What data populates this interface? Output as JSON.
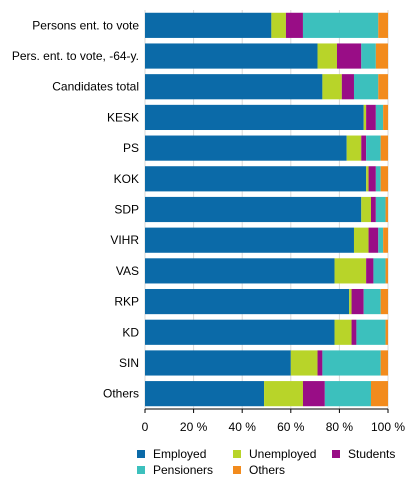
{
  "chart_data": {
    "type": "bar",
    "orientation": "horizontal",
    "stacked": true,
    "percent": true,
    "categories": [
      "Persons ent. to vote",
      "Pers. ent. to vote, -64-y.",
      "Candidates total",
      "KESK",
      "PS",
      "KOK",
      "SDP",
      "VIHR",
      "VAS",
      "RKP",
      "KD",
      "SIN",
      "Others"
    ],
    "series": [
      {
        "name": "Employed",
        "color": "#0b6aa8",
        "values": [
          52,
          71,
          73,
          90,
          83,
          91,
          89,
          86,
          78,
          84,
          78,
          60,
          49
        ]
      },
      {
        "name": "Unemployed",
        "color": "#b8d429",
        "values": [
          6,
          8,
          8,
          1,
          6,
          1,
          4,
          6,
          13,
          1,
          7,
          11,
          16
        ]
      },
      {
        "name": "Students",
        "color": "#990d86",
        "values": [
          7,
          10,
          5,
          4,
          2,
          3,
          2,
          4,
          3,
          5,
          2,
          2,
          9
        ]
      },
      {
        "name": "Pensioners",
        "color": "#3cc0bd",
        "values": [
          31,
          6,
          10,
          3,
          6,
          2,
          4,
          2,
          5,
          7,
          12,
          24,
          19
        ]
      },
      {
        "name": "Others",
        "color": "#f28b1d",
        "values": [
          4,
          5,
          4,
          2,
          3,
          3,
          1,
          2,
          1,
          3,
          1,
          3,
          7
        ]
      }
    ],
    "xlim": [
      0,
      100
    ],
    "xticks": [
      "0",
      "20 %",
      "40 %",
      "60 %",
      "80 %",
      "100 %"
    ],
    "grid": true,
    "legend_position": "bottom"
  }
}
